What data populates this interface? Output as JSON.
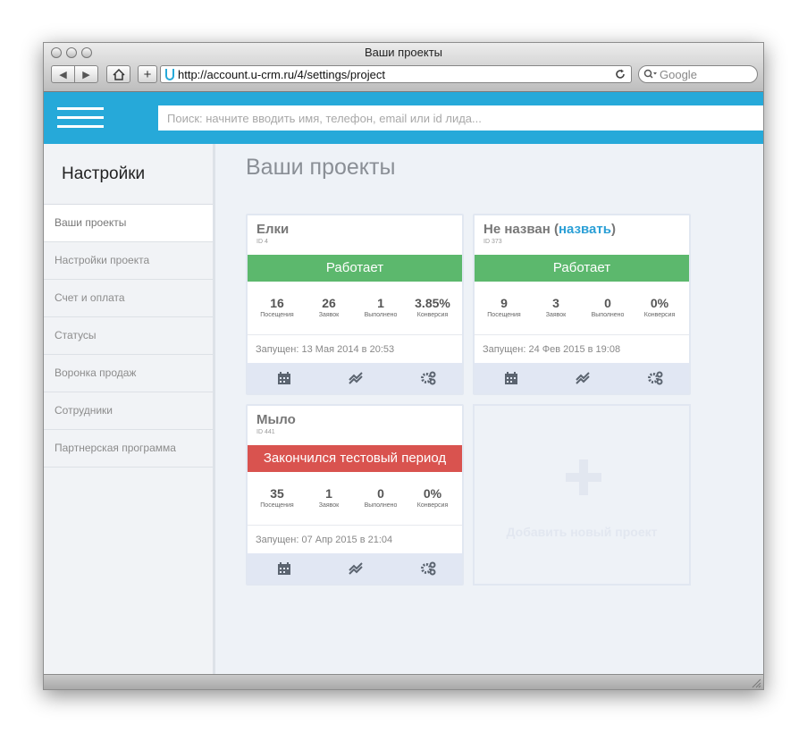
{
  "window": {
    "title": "Ваши проекты",
    "url": "http://account.u-crm.ru/4/settings/project",
    "search_placeholder": "Google"
  },
  "topbar": {
    "search_placeholder": "Поиск: начните вводить имя, телефон, email или id лида..."
  },
  "sidebar": {
    "title": "Настройки",
    "items": [
      {
        "label": "Ваши проекты"
      },
      {
        "label": "Настройки проекта"
      },
      {
        "label": "Счет и оплата"
      },
      {
        "label": "Статусы"
      },
      {
        "label": "Воронка продаж"
      },
      {
        "label": "Сотрудники"
      },
      {
        "label": "Партнерская программа"
      }
    ]
  },
  "main": {
    "title": "Ваши проекты",
    "projects": [
      {
        "name": "Елки",
        "id": "ID 4",
        "status": "Работает",
        "stats": [
          {
            "value": "16",
            "label": "Посещения"
          },
          {
            "value": "26",
            "label": "Заявок"
          },
          {
            "value": "1",
            "label": "Выполнено"
          },
          {
            "value": "3.85%",
            "label": "Конверсия"
          }
        ],
        "launched": "Запущен: 13 Мая 2014 в 20:53"
      },
      {
        "name": "Не назван (",
        "rename": "назвать",
        "name_suffix": ")",
        "id": "ID 373",
        "status": "Работает",
        "stats": [
          {
            "value": "9",
            "label": "Посещения"
          },
          {
            "value": "3",
            "label": "Заявок"
          },
          {
            "value": "0",
            "label": "Выполнено"
          },
          {
            "value": "0%",
            "label": "Конверсия"
          }
        ],
        "launched": "Запущен: 24 Фев 2015 в 19:08"
      },
      {
        "name": "Мыло",
        "id": "ID 441",
        "status": "Закончился тестовый период",
        "stats": [
          {
            "value": "35",
            "label": "Посещения"
          },
          {
            "value": "1",
            "label": "Заявок"
          },
          {
            "value": "0",
            "label": "Выполнено"
          },
          {
            "value": "0%",
            "label": "Конверсия"
          }
        ],
        "launched": "Запущен: 07 Апр 2015 в 21:04"
      }
    ],
    "add_project": "Добавить новый проект"
  },
  "icons": {
    "calendar": "calendar-icon",
    "chart": "chart-icon",
    "settings": "gears-icon"
  },
  "colors": {
    "brand": "#26a9d9",
    "status_ok": "#5cb86d",
    "status_expired": "#d9534f",
    "link": "#2a9fd6"
  }
}
